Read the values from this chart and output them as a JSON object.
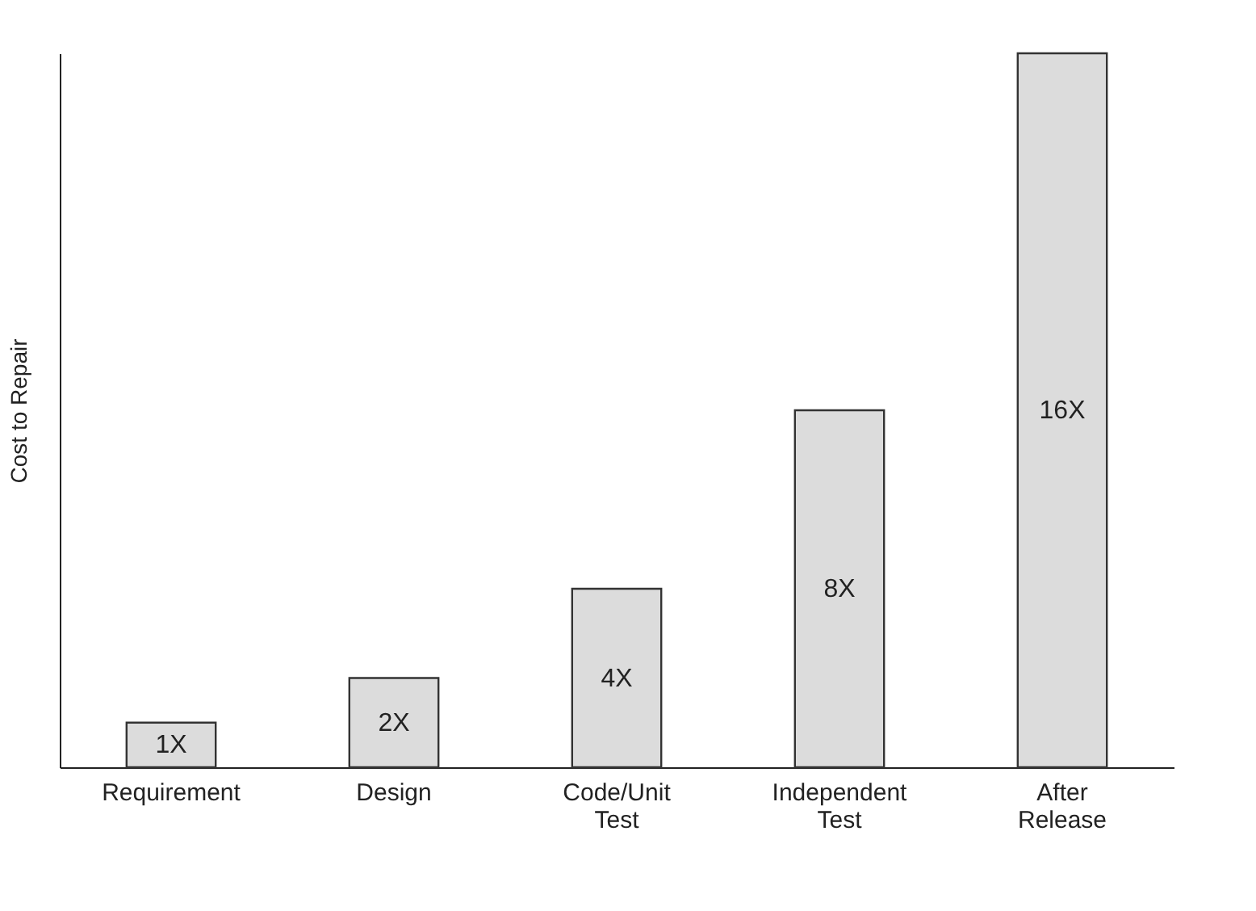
{
  "chart_data": {
    "type": "bar",
    "ylabel": "Cost to Repair",
    "categories": [
      "Requirement",
      "Design",
      "Code/Unit Test",
      "Independent Test",
      "After Release"
    ],
    "values": [
      1,
      2,
      4,
      8,
      16
    ],
    "value_labels": [
      "1X",
      "2X",
      "4X",
      "8X",
      "16X"
    ],
    "color": "#dcdcdc",
    "grid": false,
    "tick_labels": "x"
  }
}
